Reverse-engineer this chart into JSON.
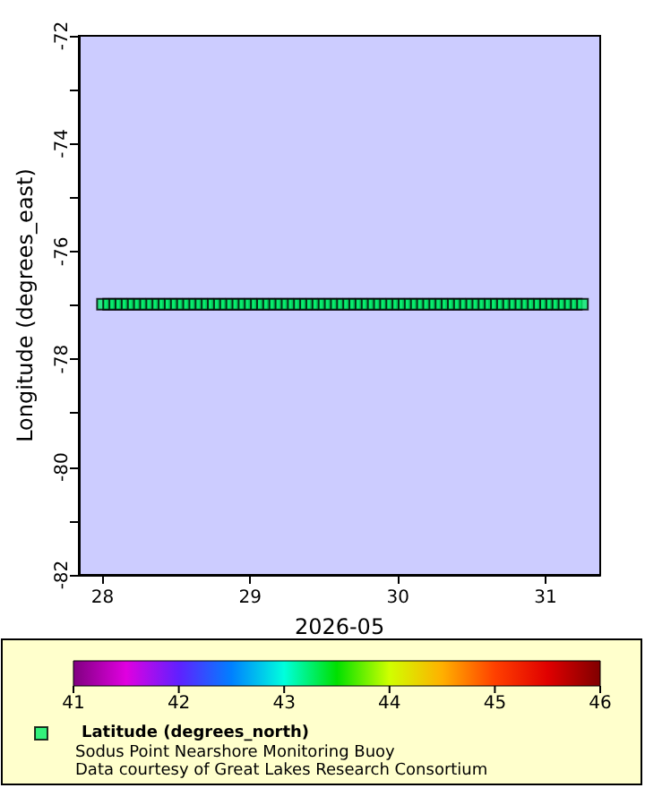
{
  "chart_data": {
    "type": "scatter",
    "xlabel": "2026-05",
    "ylabel": "Longitude (degrees_east)",
    "x": [
      28.0,
      28.0417,
      28.0833,
      28.125,
      28.1667,
      28.2083,
      28.25,
      28.2917,
      28.3333,
      28.375,
      28.4167,
      28.4583,
      28.5,
      28.5417,
      28.5833,
      28.625,
      28.6667,
      28.7083,
      28.75,
      28.7917,
      28.8333,
      28.875,
      28.9167,
      28.9583,
      29.0,
      29.0417,
      29.0833,
      29.125,
      29.1667,
      29.2083,
      29.25,
      29.2917,
      29.3333,
      29.375,
      29.4167,
      29.4583,
      29.5,
      29.5417,
      29.5833,
      29.625,
      29.6667,
      29.7083,
      29.75,
      29.7917,
      29.8333,
      29.875,
      29.9167,
      29.9583,
      30.0,
      30.0417,
      30.0833,
      30.125,
      30.1667,
      30.2083,
      30.25,
      30.2917,
      30.3333,
      30.375,
      30.4167,
      30.4583,
      30.5,
      30.5417,
      30.5833,
      30.625,
      30.6667,
      30.7083,
      30.75,
      30.7917,
      30.8333,
      30.875,
      30.9167,
      30.9583,
      31.0,
      31.0417,
      31.0833,
      31.125,
      31.1667,
      31.2083,
      31.25
    ],
    "series": [
      {
        "name": "Latitude (degrees_north)",
        "color": "#00ee66",
        "values": [
          -76.98,
          -76.98,
          -76.98,
          -76.98,
          -76.98,
          -76.98,
          -76.98,
          -76.98,
          -76.98,
          -76.98,
          -76.98,
          -76.98,
          -76.98,
          -76.98,
          -76.98,
          -76.98,
          -76.98,
          -76.98,
          -76.98,
          -76.98,
          -76.98,
          -76.98,
          -76.98,
          -76.98,
          -76.98,
          -76.98,
          -76.98,
          -76.98,
          -76.98,
          -76.98,
          -76.98,
          -76.98,
          -76.98,
          -76.98,
          -76.98,
          -76.98,
          -76.98,
          -76.98,
          -76.98,
          -76.98,
          -76.98,
          -76.98,
          -76.98,
          -76.98,
          -76.98,
          -76.98,
          -76.98,
          -76.98,
          -76.98,
          -76.98,
          -76.98,
          -76.98,
          -76.98,
          -76.98,
          -76.98,
          -76.98,
          -76.98,
          -76.98,
          -76.98,
          -76.98,
          -76.98,
          -76.98,
          -76.98,
          -76.98,
          -76.98,
          -76.98,
          -76.98,
          -76.98,
          -76.98,
          -76.98,
          -76.98,
          -76.98,
          -76.98,
          -76.98,
          -76.98,
          -76.98,
          -76.98,
          -76.98,
          -76.98
        ],
        "cvalues": [
          43.27,
          43.27,
          43.27,
          43.27,
          43.27,
          43.27,
          43.27,
          43.27,
          43.27,
          43.27,
          43.27,
          43.27,
          43.27,
          43.27,
          43.27,
          43.27,
          43.27,
          43.27,
          43.27,
          43.27,
          43.27,
          43.27,
          43.27,
          43.27,
          43.27,
          43.27,
          43.27,
          43.27,
          43.27,
          43.27,
          43.27,
          43.27,
          43.27,
          43.27,
          43.27,
          43.27,
          43.27,
          43.27,
          43.27,
          43.27,
          43.27,
          43.27,
          43.27,
          43.27,
          43.27,
          43.27,
          43.27,
          43.27,
          43.27,
          43.27,
          43.27,
          43.27,
          43.27,
          43.27,
          43.27,
          43.27,
          43.27,
          43.27,
          43.27,
          43.27,
          43.27,
          43.27,
          43.27,
          43.27,
          43.27,
          43.27,
          43.27,
          43.27,
          43.27,
          43.27,
          43.27,
          43.27,
          43.27,
          43.27,
          43.27,
          43.27,
          43.27,
          43.27,
          43.27
        ]
      }
    ],
    "xlim": [
      27.84,
      31.37
    ],
    "xticks": [
      28,
      29,
      30,
      31
    ],
    "ylim": [
      -82,
      -72
    ],
    "yticks": [
      -82,
      {
        "value": -81,
        "label": null
      },
      -80,
      {
        "value": -79,
        "label": null
      },
      -78,
      {
        "value": -77,
        "label": null
      },
      -76,
      {
        "value": -75,
        "label": null
      },
      -74,
      {
        "value": -73,
        "label": null
      },
      -72
    ],
    "clim": [
      41,
      46
    ],
    "cticks": [
      41,
      42,
      43,
      44,
      45,
      46
    ],
    "annotations": [
      "Sodus Point Nearshore Monitoring Buoy",
      "Data courtesy of Great Lakes Research Consortium"
    ],
    "marker": "square",
    "legend": "bottom",
    "grid": false
  }
}
